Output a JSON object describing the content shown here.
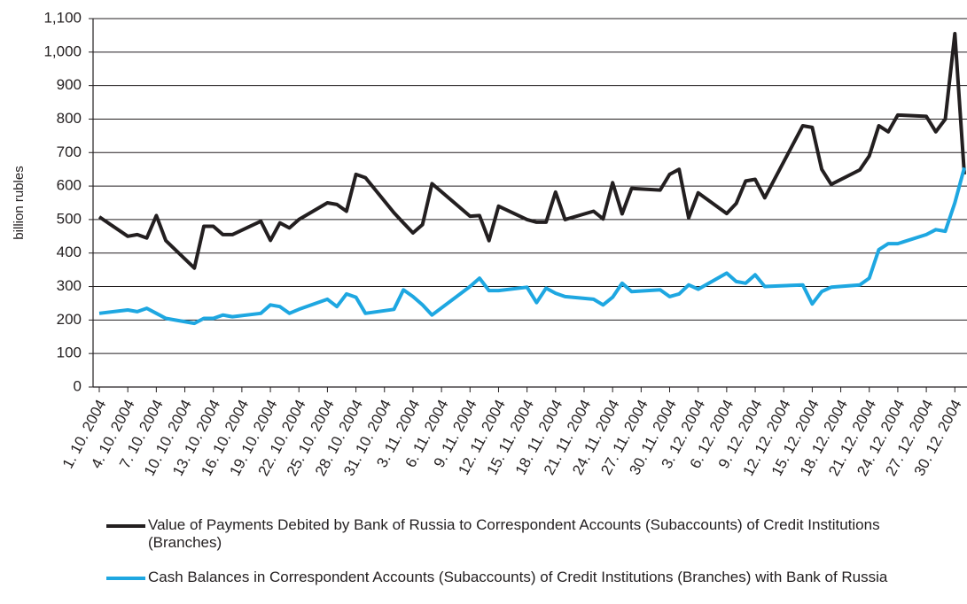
{
  "chart_data": {
    "type": "line",
    "ylabel": "billion rubles",
    "ylim": [
      0,
      1100
    ],
    "yticks": [
      0,
      100,
      200,
      300,
      400,
      500,
      600,
      700,
      800,
      900,
      {
        "value": 1000,
        "label": "1,000"
      },
      {
        "value": 1100,
        "label": "1,100"
      }
    ],
    "xlim": [
      "1. 10. 2004",
      "31. 12. 2004"
    ],
    "xticks": [
      "1. 10. 2004",
      "4. 10. 2004",
      "7. 10. 2004",
      "10. 10. 2004",
      "13. 10. 2004",
      "16. 10. 2004",
      "19. 10. 2004",
      "22. 10. 2004",
      "25. 10. 2004",
      "28. 10. 2004",
      "31. 10. 2004",
      "3. 11. 2004",
      "6. 11. 2004",
      "9. 11. 2004",
      "12. 11. 2004",
      "15. 11. 2004",
      "18. 11. 2004",
      "21. 11. 2004",
      "24. 11. 2004",
      "27. 11. 2004",
      "30. 11. 2004",
      "3. 12. 2004",
      "6. 12. 2004",
      "9. 12. 2004",
      "12. 12. 2004",
      "15. 12. 2004",
      "18. 12. 2004",
      "21. 12. 2004",
      "24. 12. 2004",
      "27. 12. 2004",
      "30. 12. 2004"
    ],
    "x": [
      "1. 10. 2004",
      "4. 10. 2004",
      "5. 10. 2004",
      "6. 10. 2004",
      "7. 10. 2004",
      "8. 10. 2004",
      "11. 10. 2004",
      "12. 10. 2004",
      "13. 10. 2004",
      "14. 10. 2004",
      "15. 10. 2004",
      "18. 10. 2004",
      "19. 10. 2004",
      "20. 10. 2004",
      "21. 10. 2004",
      "22. 10. 2004",
      "25. 10. 2004",
      "26. 10. 2004",
      "27. 10. 2004",
      "28. 10. 2004",
      "29. 10. 2004",
      "1. 11. 2004",
      "2. 11. 2004",
      "3. 11. 2004",
      "4. 11. 2004",
      "5. 11. 2004",
      "9. 11. 2004",
      "10. 11. 2004",
      "11. 11. 2004",
      "12. 11. 2004",
      "15. 11. 2004",
      "16. 11. 2004",
      "17. 11. 2004",
      "18. 11. 2004",
      "19. 11. 2004",
      "22. 11. 2004",
      "23. 11. 2004",
      "24. 11. 2004",
      "25. 11. 2004",
      "26. 11. 2004",
      "29. 11. 2004",
      "30. 11. 2004",
      "1. 12. 2004",
      "2. 12. 2004",
      "3. 12. 2004",
      "6. 12. 2004",
      "7. 12. 2004",
      "8. 12. 2004",
      "9. 12. 2004",
      "10. 12. 2004",
      "14. 12. 2004",
      "15. 12. 2004",
      "16. 12. 2004",
      "17. 12. 2004",
      "20. 12. 2004",
      "21. 12. 2004",
      "22. 12. 2004",
      "23. 12. 2004",
      "24. 12. 2004",
      "27. 12. 2004",
      "28. 12. 2004",
      "29. 12. 2004",
      "30. 12. 2004",
      "31. 12. 2004"
    ],
    "series": [
      {
        "name": "Value of Payments Debited  by Bank of Russia to Correspondent Accounts (Subaccounts) of Credit Institutions (Branches)",
        "color": "#231f20",
        "values": [
          508,
          450,
          455,
          445,
          512,
          437,
          355,
          480,
          480,
          455,
          455,
          495,
          438,
          490,
          475,
          500,
          550,
          545,
          525,
          635,
          625,
          520,
          490,
          460,
          485,
          607,
          510,
          512,
          437,
          540,
          500,
          492,
          492,
          582,
          500,
          525,
          502,
          610,
          517,
          593,
          588,
          635,
          650,
          505,
          580,
          518,
          548,
          615,
          620,
          565,
          780,
          775,
          650,
          605,
          648,
          690,
          780,
          762,
          812,
          808,
          762,
          800,
          1055,
          635
        ]
      },
      {
        "name": "Cash Balances in Correspondent Accounts (Subaccounts) of Credit Institutions (Branches) with Bank of Russia",
        "color": "#1ea7e1",
        "values": [
          220,
          230,
          225,
          235,
          220,
          205,
          190,
          205,
          205,
          215,
          210,
          220,
          245,
          240,
          220,
          232,
          262,
          240,
          278,
          268,
          220,
          232,
          290,
          270,
          245,
          215,
          300,
          325,
          288,
          288,
          298,
          252,
          295,
          280,
          270,
          262,
          245,
          268,
          310,
          285,
          290,
          270,
          278,
          305,
          292,
          340,
          315,
          310,
          335,
          300,
          305,
          248,
          285,
          298,
          305,
          325,
          410,
          428,
          428,
          455,
          470,
          465,
          550,
          655
        ]
      }
    ],
    "grid": true
  }
}
